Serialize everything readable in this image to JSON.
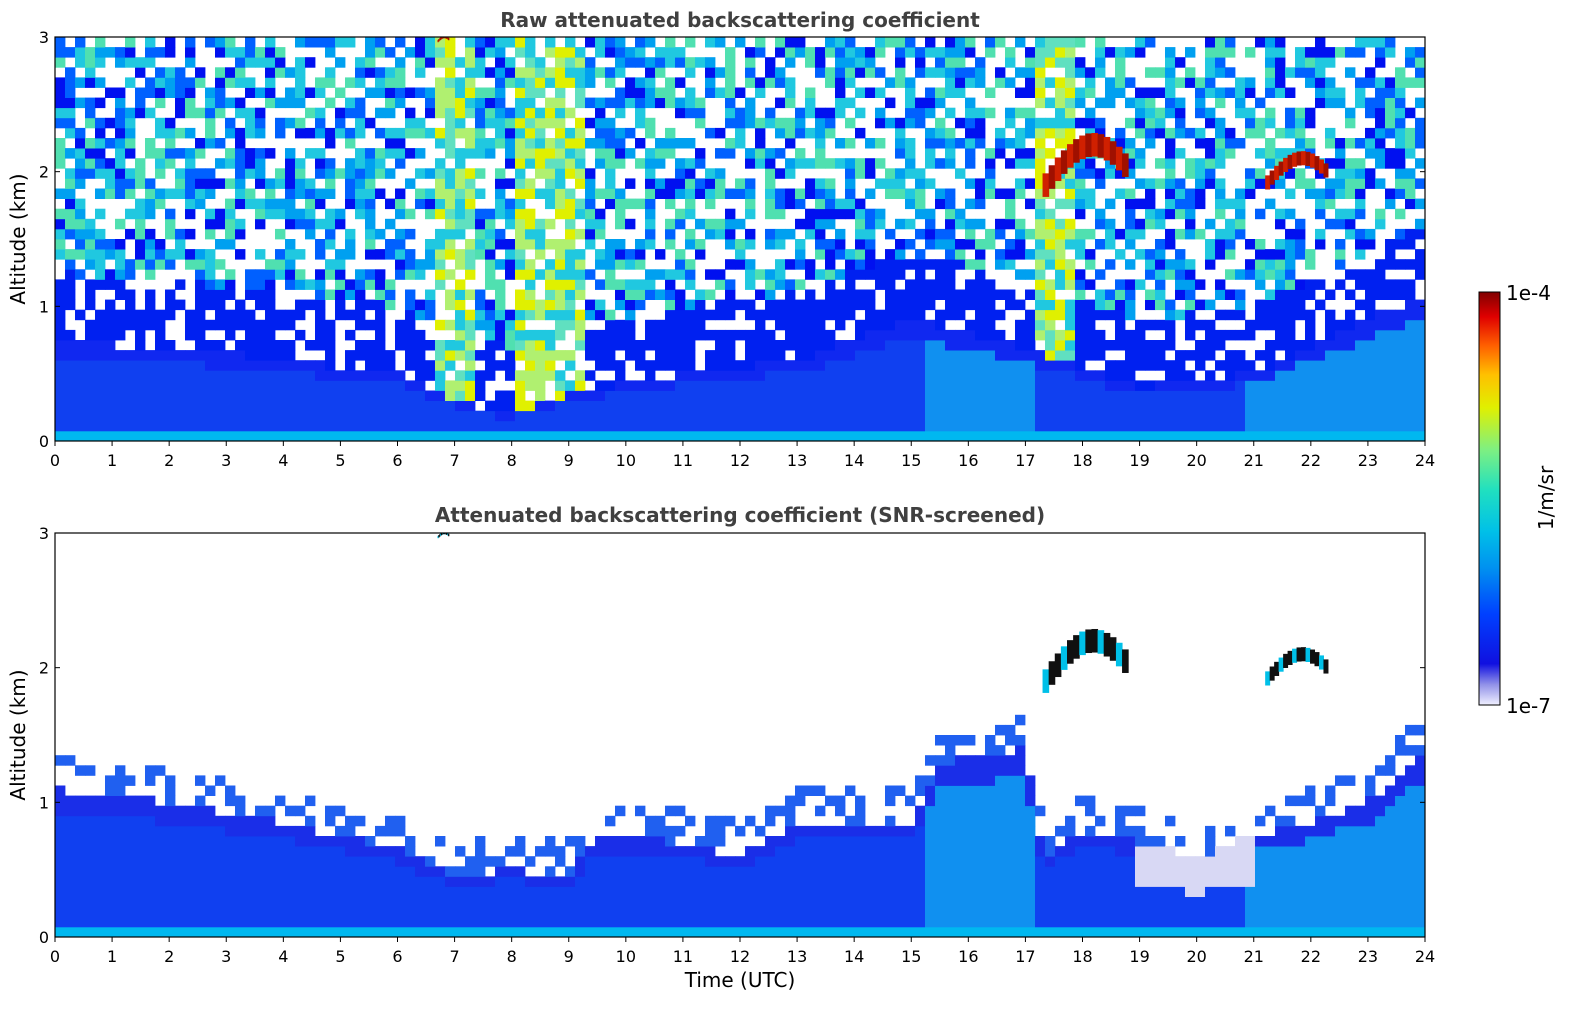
{
  "chart_data": [
    {
      "type": "heatmap",
      "title": "Raw attenuated backscattering coefficient",
      "xlabel": "",
      "ylabel": "Altitude (km)",
      "xlim": [
        0,
        24
      ],
      "ylim": [
        0,
        3
      ],
      "xticks": [
        "0",
        "1",
        "2",
        "3",
        "4",
        "5",
        "6",
        "7",
        "8",
        "9",
        "10",
        "11",
        "12",
        "13",
        "14",
        "15",
        "16",
        "17",
        "18",
        "19",
        "20",
        "21",
        "22",
        "23",
        "24"
      ],
      "yticks": [
        "0",
        "1",
        "2",
        "3"
      ],
      "screened": false,
      "features": {
        "boundary_layer_top_km": [
          [
            0,
            0.75
          ],
          [
            3,
            0.65
          ],
          [
            6,
            0.5
          ],
          [
            7,
            0.3
          ],
          [
            8,
            0.2
          ],
          [
            9,
            0.35
          ],
          [
            11,
            0.5
          ],
          [
            13,
            0.6
          ],
          [
            15,
            0.9
          ],
          [
            17,
            0.7
          ],
          [
            19,
            0.4
          ],
          [
            21,
            0.5
          ],
          [
            23,
            0.9
          ],
          [
            24,
            1.1
          ]
        ],
        "clouds": [
          {
            "t_start": 17.3,
            "t_end": 18.8,
            "alt_km": [
              1.7,
              2.2
            ]
          },
          {
            "t_start": 21.2,
            "t_end": 22.3,
            "alt_km": [
              1.8,
              2.1
            ]
          },
          {
            "t_start": 6.7,
            "t_end": 6.9,
            "alt_km": [
              2.95,
              3.0
            ]
          }
        ],
        "bright_noise_bands": [
          [
            6.6,
            7.4
          ],
          [
            8.0,
            9.3
          ],
          [
            17.2,
            17.9
          ]
        ]
      }
    },
    {
      "type": "heatmap",
      "title": "Attenuated backscattering coefficient (SNR-screened)",
      "xlabel": "Time (UTC)",
      "ylabel": "Altitude (km)",
      "xlim": [
        0,
        24
      ],
      "ylim": [
        0,
        3
      ],
      "xticks": [
        "0",
        "1",
        "2",
        "3",
        "4",
        "5",
        "6",
        "7",
        "8",
        "9",
        "10",
        "11",
        "12",
        "13",
        "14",
        "15",
        "16",
        "17",
        "18",
        "19",
        "20",
        "21",
        "22",
        "23",
        "24"
      ],
      "yticks": [
        "0",
        "1",
        "2",
        "3"
      ],
      "screened": true,
      "features": {
        "boundary_layer_top_km": [
          [
            0,
            1.1
          ],
          [
            2,
            1.0
          ],
          [
            4,
            0.85
          ],
          [
            6,
            0.65
          ],
          [
            7,
            0.45
          ],
          [
            8,
            0.5
          ],
          [
            9,
            0.45
          ],
          [
            9.5,
            0.75
          ],
          [
            11,
            0.7
          ],
          [
            12,
            0.6
          ],
          [
            13,
            0.85
          ],
          [
            15,
            0.85
          ],
          [
            15.5,
            1.3
          ],
          [
            17,
            1.4
          ],
          [
            17.3,
            0.6
          ],
          [
            18,
            0.8
          ],
          [
            19,
            0.7
          ],
          [
            20,
            0.6
          ],
          [
            21,
            0.75
          ],
          [
            22,
            0.85
          ],
          [
            23,
            1.0
          ],
          [
            24,
            1.4
          ]
        ],
        "clouds": [
          {
            "t_start": 17.3,
            "t_end": 18.8,
            "alt_km": [
              1.7,
              2.2
            ]
          },
          {
            "t_start": 21.2,
            "t_end": 22.3,
            "alt_km": [
              1.8,
              2.1
            ]
          },
          {
            "t_start": 6.7,
            "t_end": 6.9,
            "alt_km": [
              2.95,
              3.0
            ]
          }
        ]
      }
    }
  ],
  "colorbar": {
    "min_label": "1e-7",
    "max_label": "1e-4",
    "unit_label": "1/m/sr",
    "colors": [
      "#e8e8f8",
      "#9090e8",
      "#1010e0",
      "#0040ff",
      "#0090f0",
      "#00c0e8",
      "#20e0c0",
      "#80f080",
      "#e0f000",
      "#ffc000",
      "#ff6000",
      "#e00000",
      "#800000"
    ]
  }
}
